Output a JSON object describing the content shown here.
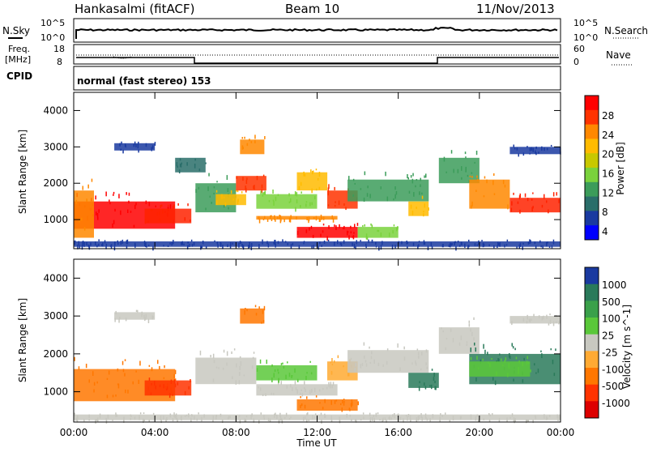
{
  "header": {
    "title": "Hankasalmi (fitACF)",
    "beam": "Beam 10",
    "date": "11/Nov/2013"
  },
  "strips": {
    "nsky_label": "N.Sky",
    "nsearch_label": "N.Search",
    "nsky_ticks": [
      "10^5",
      "10^0"
    ],
    "nsearch_ticks": [
      "10^5",
      "10^0"
    ],
    "freq_label_1": "Freq.",
    "freq_label_2": "[MHz]",
    "freq_ticks": [
      "18",
      "8"
    ],
    "nave_label": "Nave",
    "nave_ticks": [
      "60",
      "0"
    ],
    "cpid_label": "CPID",
    "cpid_text": "normal (fast stereo) 153"
  },
  "panels": {
    "ylabel": "Slant Range [km]",
    "yticks": [
      "4000",
      "3000",
      "2000",
      "1000"
    ],
    "xlabel": "Time UT",
    "xticks": [
      "00:00",
      "04:00",
      "08:00",
      "12:00",
      "16:00",
      "20:00",
      "00:00"
    ]
  },
  "power_scale": {
    "label": "Power [dB]",
    "ticks": [
      "28",
      "24",
      "20",
      "16",
      "12",
      "8",
      "4"
    ],
    "colors": [
      "#ff0000",
      "#ff3300",
      "#ff8800",
      "#ffbb00",
      "#c8c800",
      "#7ad23c",
      "#3c9c5a",
      "#2a6e6a",
      "#1a3aa0",
      "#0000ff"
    ]
  },
  "velocity_scale": {
    "label": "Velocity [m s^-1]",
    "ticks": [
      "1000",
      "500",
      "100",
      "25",
      "-25",
      "-100",
      "-500",
      "-1000"
    ],
    "colors": [
      "#1a3aa0",
      "#2a7a5a",
      "#3aa04a",
      "#5ac83a",
      "#c8c8c0",
      "#ffaa33",
      "#ff7700",
      "#ff3300",
      "#dd0000"
    ]
  },
  "chart_data": {
    "type": "heatmap",
    "x_unit": "hours UT",
    "xlim": [
      0,
      24
    ],
    "ylim": [
      200,
      4500
    ],
    "power_blobs": [
      {
        "x0": 0.0,
        "x1": 5.0,
        "y0": 750,
        "y1": 1500,
        "c": "#ff0000"
      },
      {
        "x0": 3.5,
        "x1": 5.8,
        "y0": 900,
        "y1": 1300,
        "c": "#ff2200"
      },
      {
        "x0": 0.0,
        "x1": 1.0,
        "y0": 500,
        "y1": 1800,
        "c": "#ff8800"
      },
      {
        "x0": 6.0,
        "x1": 8.0,
        "y0": 1200,
        "y1": 2000,
        "c": "#3c9c5a"
      },
      {
        "x0": 7.0,
        "x1": 8.5,
        "y0": 1400,
        "y1": 1700,
        "c": "#ffbb00"
      },
      {
        "x0": 8.0,
        "x1": 9.5,
        "y0": 1800,
        "y1": 2200,
        "c": "#ff3300"
      },
      {
        "x0": 8.2,
        "x1": 9.4,
        "y0": 2800,
        "y1": 3200,
        "c": "#ff8800"
      },
      {
        "x0": 9.0,
        "x1": 12.0,
        "y0": 1300,
        "y1": 1700,
        "c": "#7ad23c"
      },
      {
        "x0": 9.0,
        "x1": 13.0,
        "y0": 1000,
        "y1": 1100,
        "c": "#ff8800"
      },
      {
        "x0": 11.0,
        "x1": 12.5,
        "y0": 1800,
        "y1": 2300,
        "c": "#ffbb00"
      },
      {
        "x0": 11.0,
        "x1": 14.0,
        "y0": 500,
        "y1": 800,
        "c": "#ff0000"
      },
      {
        "x0": 12.5,
        "x1": 14.0,
        "y0": 1300,
        "y1": 1800,
        "c": "#ff3300"
      },
      {
        "x0": 13.5,
        "x1": 17.5,
        "y0": 1500,
        "y1": 2100,
        "c": "#3c9c5a"
      },
      {
        "x0": 14.0,
        "x1": 16.0,
        "y0": 500,
        "y1": 800,
        "c": "#7ad23c"
      },
      {
        "x0": 16.5,
        "x1": 17.5,
        "y0": 1100,
        "y1": 1500,
        "c": "#ffbb00"
      },
      {
        "x0": 18.0,
        "x1": 20.0,
        "y0": 2000,
        "y1": 2700,
        "c": "#3c9c5a"
      },
      {
        "x0": 19.5,
        "x1": 21.5,
        "y0": 1300,
        "y1": 2100,
        "c": "#ff8800"
      },
      {
        "x0": 21.5,
        "x1": 24.0,
        "y0": 1200,
        "y1": 1600,
        "c": "#ff2200"
      },
      {
        "x0": 21.5,
        "x1": 24.0,
        "y0": 2800,
        "y1": 3000,
        "c": "#1a3aa0"
      },
      {
        "x0": 2.0,
        "x1": 4.0,
        "y0": 2900,
        "y1": 3100,
        "c": "#1a3aa0"
      },
      {
        "x0": 5.0,
        "x1": 6.5,
        "y0": 2300,
        "y1": 2700,
        "c": "#2a6e6a"
      },
      {
        "x0": 0.0,
        "x1": 24.0,
        "y0": 250,
        "y1": 400,
        "c": "#1a3aa0"
      }
    ],
    "velocity_blobs": [
      {
        "x0": 0.0,
        "x1": 5.0,
        "y0": 750,
        "y1": 1600,
        "c": "#ff7700"
      },
      {
        "x0": 3.5,
        "x1": 5.8,
        "y0": 900,
        "y1": 1300,
        "c": "#ff3300"
      },
      {
        "x0": 6.0,
        "x1": 9.0,
        "y0": 1200,
        "y1": 1900,
        "c": "#c8c8c0"
      },
      {
        "x0": 8.2,
        "x1": 9.4,
        "y0": 2800,
        "y1": 3200,
        "c": "#ff7700"
      },
      {
        "x0": 9.0,
        "x1": 13.0,
        "y0": 900,
        "y1": 1200,
        "c": "#c8c8c0"
      },
      {
        "x0": 9.0,
        "x1": 12.0,
        "y0": 1300,
        "y1": 1700,
        "c": "#5ac83a"
      },
      {
        "x0": 11.0,
        "x1": 14.0,
        "y0": 500,
        "y1": 800,
        "c": "#ff7700"
      },
      {
        "x0": 12.5,
        "x1": 14.0,
        "y0": 1300,
        "y1": 1800,
        "c": "#ffaa33"
      },
      {
        "x0": 13.5,
        "x1": 17.5,
        "y0": 1500,
        "y1": 2100,
        "c": "#c8c8c0"
      },
      {
        "x0": 16.5,
        "x1": 18.0,
        "y0": 1100,
        "y1": 1500,
        "c": "#2a7a5a"
      },
      {
        "x0": 18.0,
        "x1": 20.0,
        "y0": 2000,
        "y1": 2700,
        "c": "#c8c8c0"
      },
      {
        "x0": 19.5,
        "x1": 24.0,
        "y0": 1200,
        "y1": 2000,
        "c": "#2a7a5a"
      },
      {
        "x0": 19.5,
        "x1": 22.5,
        "y0": 1400,
        "y1": 1800,
        "c": "#5ac83a"
      },
      {
        "x0": 21.5,
        "x1": 24.0,
        "y0": 2800,
        "y1": 3000,
        "c": "#c8c8c0"
      },
      {
        "x0": 2.0,
        "x1": 4.0,
        "y0": 2900,
        "y1": 3100,
        "c": "#c8c8c0"
      },
      {
        "x0": 0.0,
        "x1": 24.0,
        "y0": 250,
        "y1": 400,
        "c": "#c8c8c0"
      }
    ]
  }
}
